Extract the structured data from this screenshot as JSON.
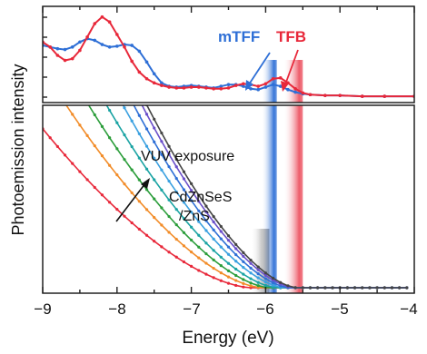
{
  "chart_data": {
    "type": "line",
    "xlabel": "Energy (eV)",
    "ylabel": "Photoemission intensity",
    "xlim": [
      -9,
      -4
    ],
    "x_ticks": [
      "−9",
      "−8",
      "−7",
      "−6",
      "−5",
      "−4"
    ],
    "grid": false,
    "panels": {
      "top": {
        "series": [
          {
            "name": "mTFF",
            "color": "#2e6fd6",
            "x": [
              -9.0,
              -8.9,
              -8.8,
              -8.7,
              -8.6,
              -8.5,
              -8.4,
              -8.3,
              -8.2,
              -8.1,
              -8.0,
              -7.9,
              -7.8,
              -7.7,
              -7.6,
              -7.5,
              -7.4,
              -7.3,
              -7.2,
              -7.1,
              -7.0,
              -6.9,
              -6.8,
              -6.7,
              -6.6,
              -6.5,
              -6.4,
              -6.3,
              -6.2,
              -6.1,
              -6.0,
              -5.9,
              -5.8,
              -5.7,
              -5.6,
              -5.5,
              -5.4,
              -5.2,
              -5.0,
              -4.7,
              -4.4,
              -4.0
            ],
            "y": [
              0.62,
              0.6,
              0.58,
              0.57,
              0.6,
              0.66,
              0.7,
              0.68,
              0.63,
              0.6,
              0.61,
              0.63,
              0.62,
              0.55,
              0.42,
              0.28,
              0.17,
              0.13,
              0.12,
              0.13,
              0.14,
              0.13,
              0.12,
              0.11,
              0.13,
              0.15,
              0.15,
              0.13,
              0.1,
              0.09,
              0.12,
              0.15,
              0.13,
              0.09,
              0.06,
              0.04,
              0.03,
              0.02,
              0.02,
              0.01,
              0.01,
              0.01
            ]
          },
          {
            "name": "TFB",
            "color": "#e8283a",
            "x": [
              -9.0,
              -8.9,
              -8.8,
              -8.7,
              -8.6,
              -8.5,
              -8.4,
              -8.3,
              -8.2,
              -8.1,
              -8.0,
              -7.9,
              -7.8,
              -7.7,
              -7.6,
              -7.5,
              -7.4,
              -7.3,
              -7.2,
              -7.1,
              -7.0,
              -6.9,
              -6.8,
              -6.7,
              -6.6,
              -6.5,
              -6.4,
              -6.3,
              -6.2,
              -6.1,
              -6.0,
              -5.9,
              -5.8,
              -5.7,
              -5.6,
              -5.5,
              -5.4,
              -5.2,
              -5.0,
              -4.7,
              -4.4,
              -4.0
            ],
            "y": [
              0.66,
              0.6,
              0.5,
              0.44,
              0.46,
              0.56,
              0.72,
              0.88,
              0.96,
              0.9,
              0.75,
              0.6,
              0.43,
              0.3,
              0.22,
              0.17,
              0.14,
              0.12,
              0.11,
              0.11,
              0.12,
              0.12,
              0.11,
              0.1,
              0.1,
              0.11,
              0.14,
              0.16,
              0.15,
              0.13,
              0.16,
              0.22,
              0.23,
              0.17,
              0.1,
              0.05,
              0.03,
              0.02,
              0.02,
              0.01,
              0.01,
              0.01
            ]
          }
        ],
        "bands": [
          {
            "x": [
              -6.05,
              -5.85
            ],
            "color": "#3a7bd5"
          },
          {
            "x": [
              -5.75,
              -5.5
            ],
            "color": "#e8283a"
          }
        ]
      },
      "bottom": {
        "series": [
          {
            "color": "#e8283a",
            "onset": -6.2,
            "decay": 0.95
          },
          {
            "color": "#f28c28",
            "onset": -6.05,
            "decay": 0.75
          },
          {
            "color": "#2b9d3a",
            "onset": -5.95,
            "decay": 0.66
          },
          {
            "color": "#1aa3a3",
            "onset": -5.85,
            "decay": 0.6
          },
          {
            "color": "#3aa0e0",
            "onset": -5.75,
            "decay": 0.55
          },
          {
            "color": "#2e6fd6",
            "onset": -5.68,
            "decay": 0.52
          },
          {
            "color": "#6a4fc9",
            "onset": -5.62,
            "decay": 0.5
          },
          {
            "color": "#444444",
            "onset": -5.58,
            "decay": 0.49
          }
        ],
        "bands": [
          {
            "x": [
              -6.2,
              -5.95
            ],
            "color": "#555555"
          },
          {
            "x": [
              -6.05,
              -5.85
            ],
            "color": "#3a7bd5"
          },
          {
            "x": [
              -5.75,
              -5.5
            ],
            "color": "#e8283a"
          }
        ]
      }
    },
    "annotations": {
      "mtff": "mTFF",
      "tfb": "TFB",
      "vuv": "VUV exposure",
      "cd1": "CdZnSeS",
      "cd2": "/ZnS"
    }
  }
}
